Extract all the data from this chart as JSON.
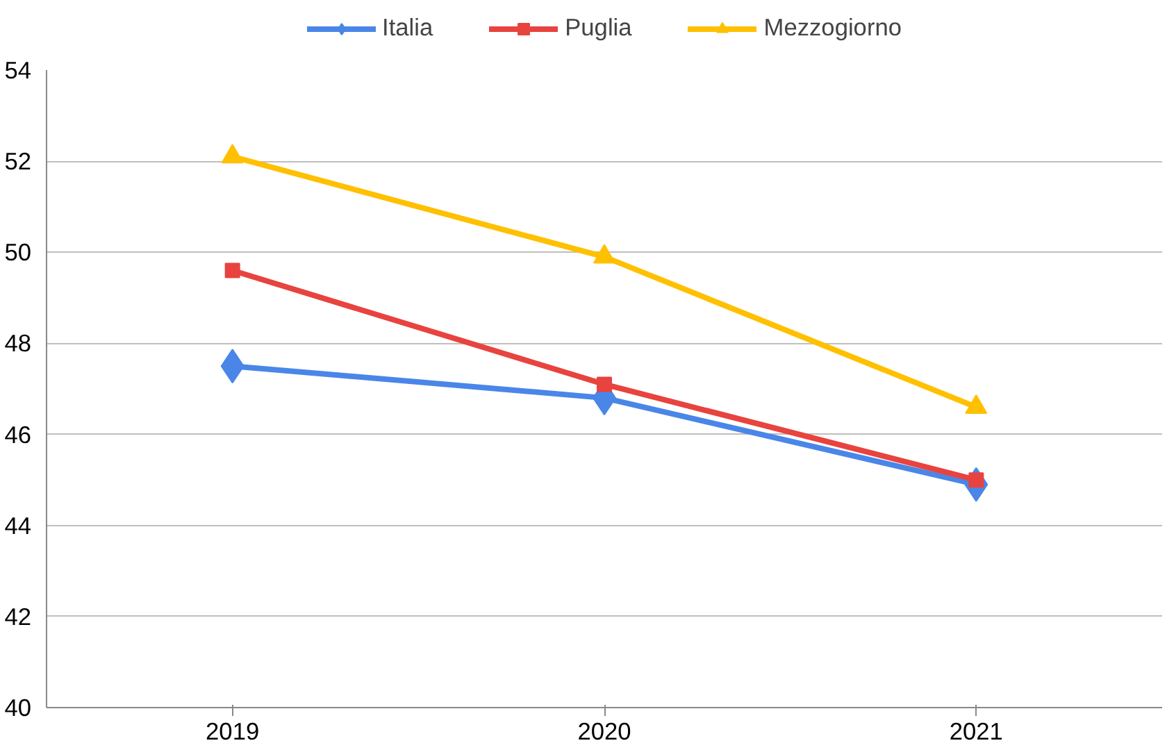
{
  "chart_data": {
    "type": "line",
    "categories": [
      "2019",
      "2020",
      "2021"
    ],
    "series": [
      {
        "name": "Italia",
        "color": "#4a86e8",
        "marker": "diamond",
        "values": [
          47.5,
          46.8,
          44.9
        ]
      },
      {
        "name": "Puglia",
        "color": "#e8433f",
        "marker": "square",
        "values": [
          49.6,
          47.1,
          45.0
        ]
      },
      {
        "name": "Mezzogiorno",
        "color": "#ffc000",
        "marker": "triangle",
        "values": [
          52.1,
          49.9,
          46.6
        ]
      }
    ],
    "ylim": [
      40,
      54
    ],
    "yticks": [
      40,
      42,
      44,
      46,
      48,
      50,
      52,
      54
    ],
    "grid": "y",
    "legend": "top"
  }
}
